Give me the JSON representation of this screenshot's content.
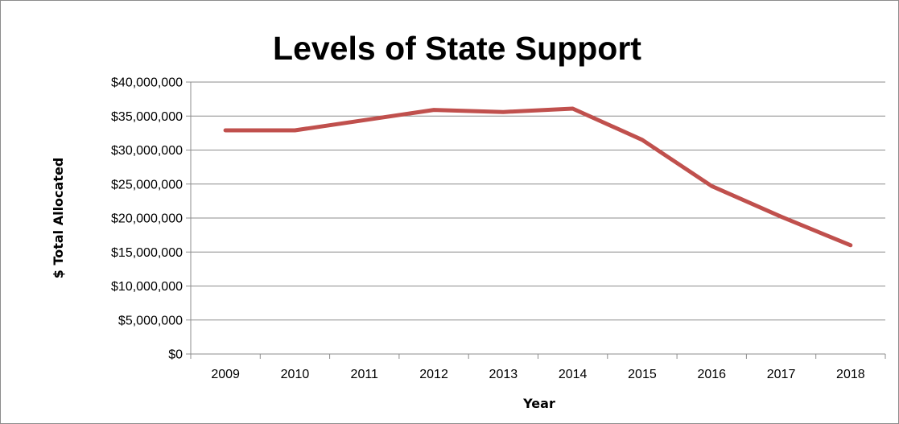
{
  "chart_data": {
    "type": "line",
    "title": "Levels of State Support",
    "xlabel": "Year",
    "ylabel": "$ Total Allocated",
    "categories": [
      "2009",
      "2010",
      "2011",
      "2012",
      "2013",
      "2014",
      "2015",
      "2016",
      "2017",
      "2018"
    ],
    "series": [
      {
        "values": [
          32900000,
          32900000,
          34400000,
          35900000,
          35600000,
          36100000,
          31500000,
          24700000,
          20200000,
          16000000
        ],
        "color": "#c0504d"
      }
    ],
    "ylim": [
      0,
      40000000
    ],
    "yticks": [
      {
        "value": 0,
        "label": "$0"
      },
      {
        "value": 5000000,
        "label": "$5,000,000"
      },
      {
        "value": 10000000,
        "label": "$10,000,000"
      },
      {
        "value": 15000000,
        "label": "$15,000,000"
      },
      {
        "value": 20000000,
        "label": "$20,000,000"
      },
      {
        "value": 25000000,
        "label": "$25,000,000"
      },
      {
        "value": 30000000,
        "label": "$30,000,000"
      },
      {
        "value": 35000000,
        "label": "$35,000,000"
      },
      {
        "value": 40000000,
        "label": "$40,000,000"
      }
    ],
    "grid": true,
    "legend": "none"
  }
}
